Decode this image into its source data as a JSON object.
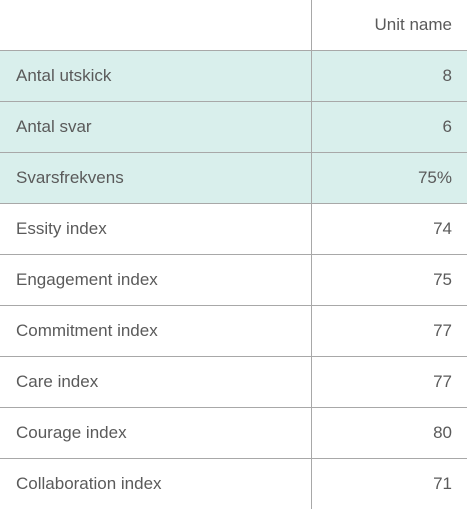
{
  "table": {
    "header": {
      "label": "",
      "value": "Unit name"
    },
    "rows": [
      {
        "label": "Antal utskick",
        "value": "8",
        "highlight": true
      },
      {
        "label": "Antal svar",
        "value": "6",
        "highlight": true
      },
      {
        "label": "Svarsfrekvens",
        "value": "75%",
        "highlight": true
      },
      {
        "label": "Essity index",
        "value": "74",
        "highlight": false
      },
      {
        "label": "Engagement index",
        "value": "75",
        "highlight": false
      },
      {
        "label": "Commitment index",
        "value": "77",
        "highlight": false
      },
      {
        "label": "Care index",
        "value": "77",
        "highlight": false
      },
      {
        "label": "Courage index",
        "value": "80",
        "highlight": false
      },
      {
        "label": "Collaboration index",
        "value": "71",
        "highlight": false
      }
    ],
    "colors": {
      "highlight": "#d9efec",
      "border": "#a8a8a8",
      "text": "#5a5a5a"
    }
  }
}
